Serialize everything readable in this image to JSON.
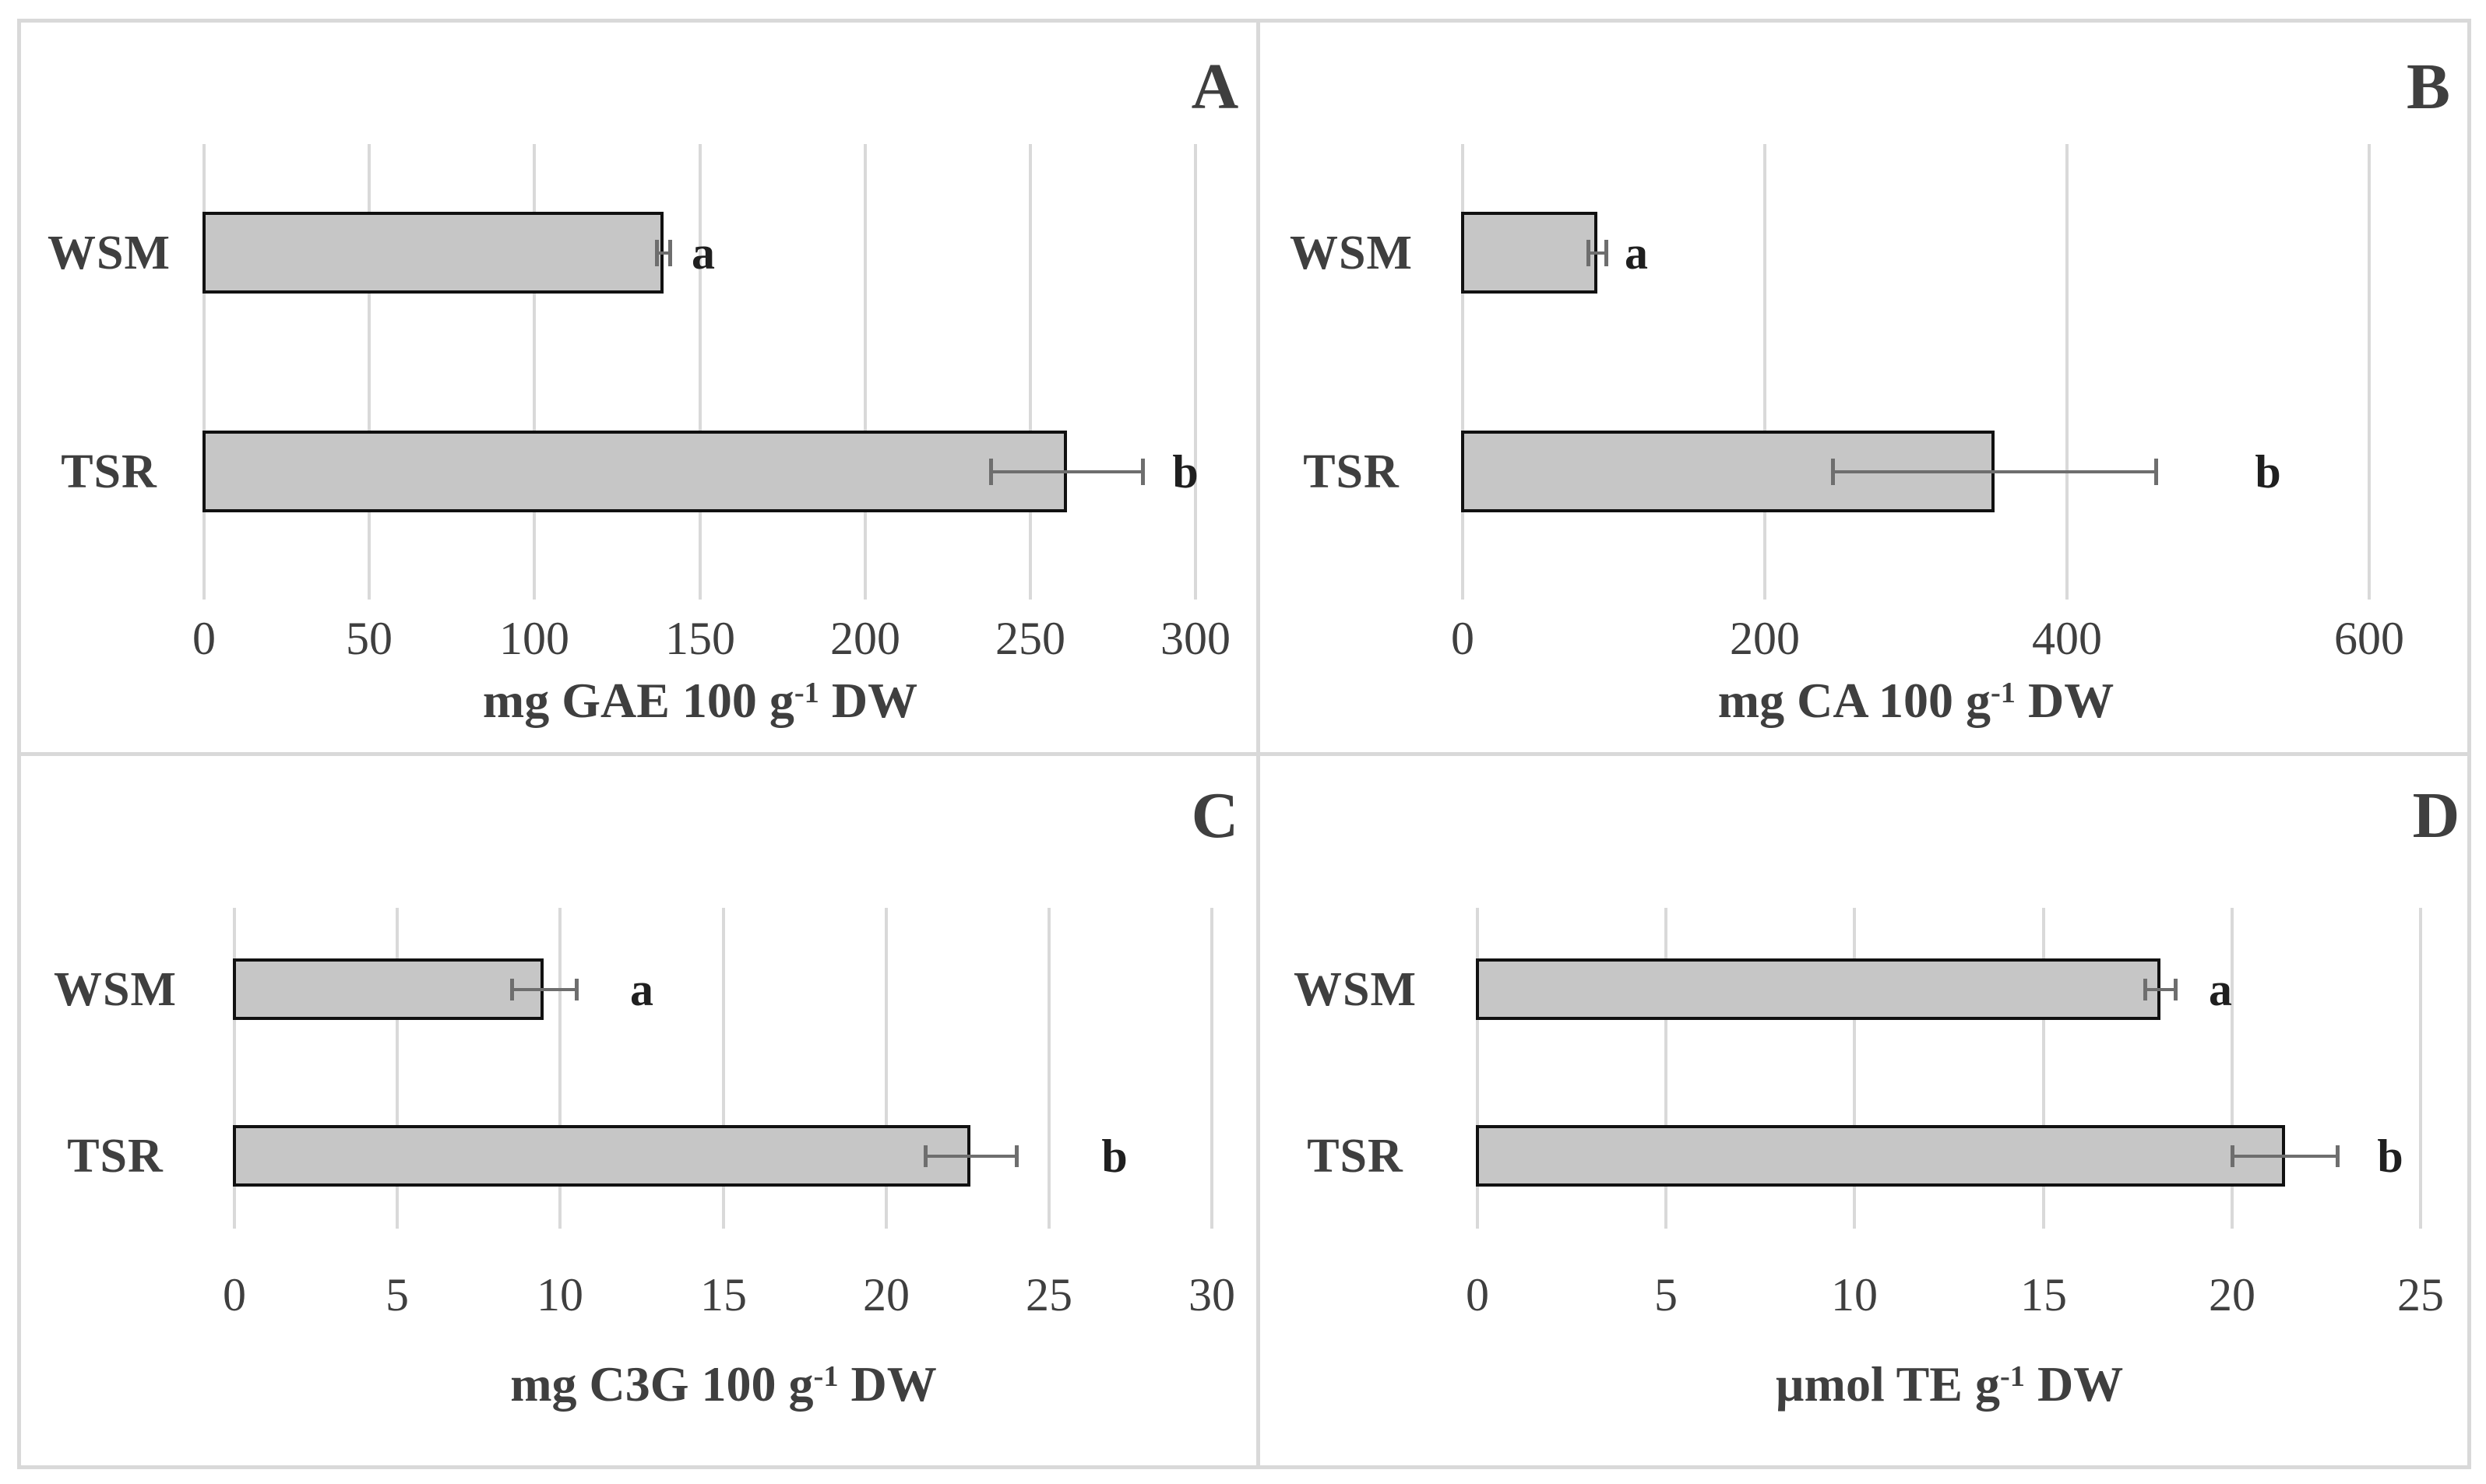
{
  "figure": {
    "background": "#ffffff",
    "frame_color": "#d9d9d9",
    "bar_fill": "#c6c6c6",
    "bar_border": "#111111",
    "gridline_color": "#d9d9d9",
    "error_bar_color": "#6e6e6e",
    "text_color": "#3f3f3f"
  },
  "chart_data": [
    {
      "type": "bar",
      "orientation": "horizontal",
      "panel_label": "A",
      "categories": [
        "WSM",
        "TSR"
      ],
      "values": [
        139,
        261
      ],
      "errors": [
        2,
        23
      ],
      "sig_letters": [
        "a",
        "b"
      ],
      "sig_x": [
        151,
        297
      ],
      "xticks": [
        0,
        50,
        100,
        150,
        200,
        250,
        300
      ],
      "xlim": [
        0,
        300
      ],
      "grid": true,
      "xlabel_pre": "mg GAE 100 g",
      "xlabel_sup": "-1",
      "xlabel_post": " DW"
    },
    {
      "type": "bar",
      "orientation": "horizontal",
      "panel_label": "B",
      "categories": [
        "WSM",
        "TSR"
      ],
      "values": [
        89,
        352
      ],
      "errors": [
        6,
        107
      ],
      "sig_letters": [
        "a",
        "b"
      ],
      "sig_x": [
        115,
        533
      ],
      "xticks": [
        0,
        200,
        400,
        600
      ],
      "xlim": [
        0,
        600
      ],
      "grid": true,
      "xlabel_pre": "mg CA 100 g",
      "xlabel_sup": "-1",
      "xlabel_post": " DW"
    },
    {
      "type": "bar",
      "orientation": "horizontal",
      "panel_label": "C",
      "categories": [
        "WSM",
        "TSR"
      ],
      "values": [
        9.5,
        22.6
      ],
      "errors": [
        1.0,
        1.4
      ],
      "sig_letters": [
        "a",
        "b"
      ],
      "sig_x": [
        12.5,
        27
      ],
      "xticks": [
        0,
        5,
        10,
        15,
        20,
        25,
        30
      ],
      "xlim": [
        0,
        30
      ],
      "grid": true,
      "xlabel_pre": "mg C3G 100 g",
      "xlabel_sup": "-1",
      "xlabel_post": " DW"
    },
    {
      "type": "bar",
      "orientation": "horizontal",
      "panel_label": "D",
      "categories": [
        "WSM",
        "TSR"
      ],
      "values": [
        18.1,
        21.4
      ],
      "errors": [
        0.4,
        1.4
      ],
      "sig_letters": [
        "a",
        "b"
      ],
      "sig_x": [
        19.7,
        24.2
      ],
      "xticks": [
        0,
        5,
        10,
        15,
        20,
        25
      ],
      "xlim": [
        0,
        25
      ],
      "grid": true,
      "xlabel_pre": "µmol TE g",
      "xlabel_sup": "-1",
      "xlabel_post": " DW"
    }
  ]
}
